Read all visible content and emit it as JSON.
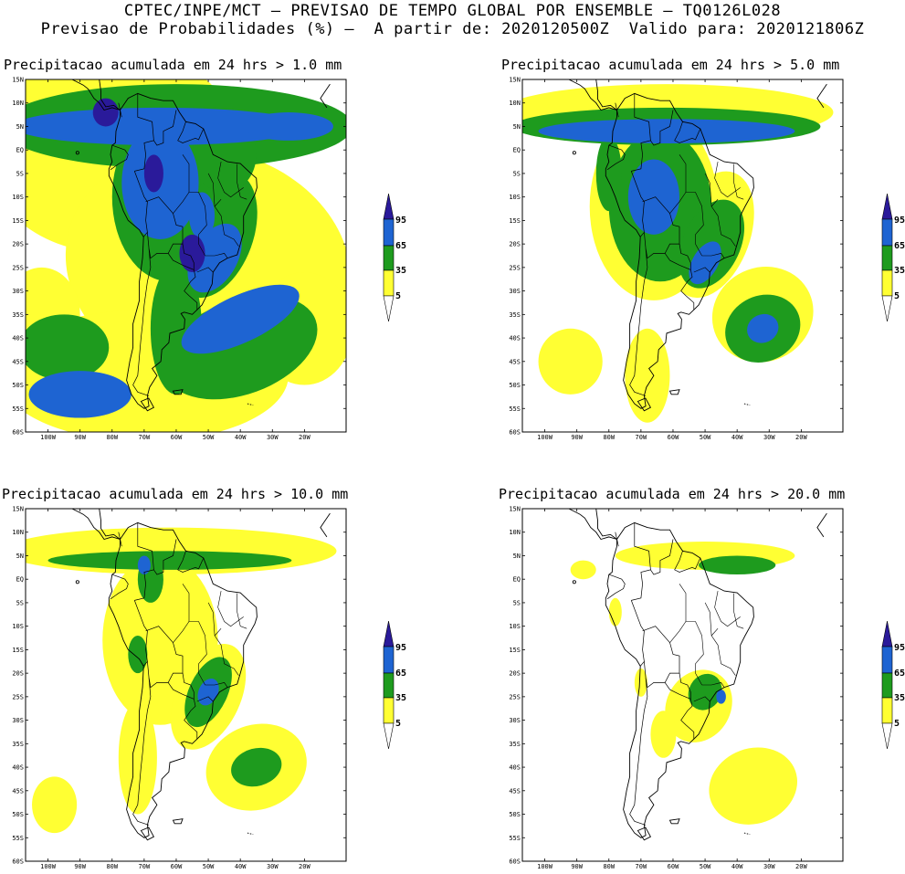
{
  "header": {
    "line1": "CPTEC/INPE/MCT – PREVISAO DE TEMPO GLOBAL POR ENSEMBLE – TQ0126L028",
    "line2": "Previsao de Probabilidades (%) –  A partir de: 2020120500Z  Valido para: 2020121806Z"
  },
  "colors": {
    "yellow": "#ffff33",
    "green": "#1e9b1e",
    "blue": "#1e64d2",
    "purple": "#2a1a9a",
    "land_outline": "#000000",
    "background": "#ffffff"
  },
  "legend": {
    "labels": [
      "95",
      "65",
      "35",
      "5"
    ]
  },
  "axes": {
    "lat_labels": [
      "15N",
      "10N",
      "5N",
      "EQ",
      "5S",
      "10S",
      "15S",
      "20S",
      "25S",
      "30S",
      "35S",
      "40S",
      "45S",
      "50S",
      "55S",
      "60S"
    ],
    "lon_labels": [
      "100W",
      "90W",
      "80W",
      "70W",
      "60W",
      "50W",
      "40W",
      "30W",
      "20W"
    ]
  },
  "panels": [
    {
      "title": "Precipitacao acumulada em 24 hrs > 1.0 mm"
    },
    {
      "title": "Precipitacao acumulada em 24 hrs > 5.0 mm"
    },
    {
      "title": "Precipitacao acumulada em 24 hrs > 10.0 mm"
    },
    {
      "title": "Precipitacao acumulada em 24 hrs > 20.0 mm"
    }
  ]
}
